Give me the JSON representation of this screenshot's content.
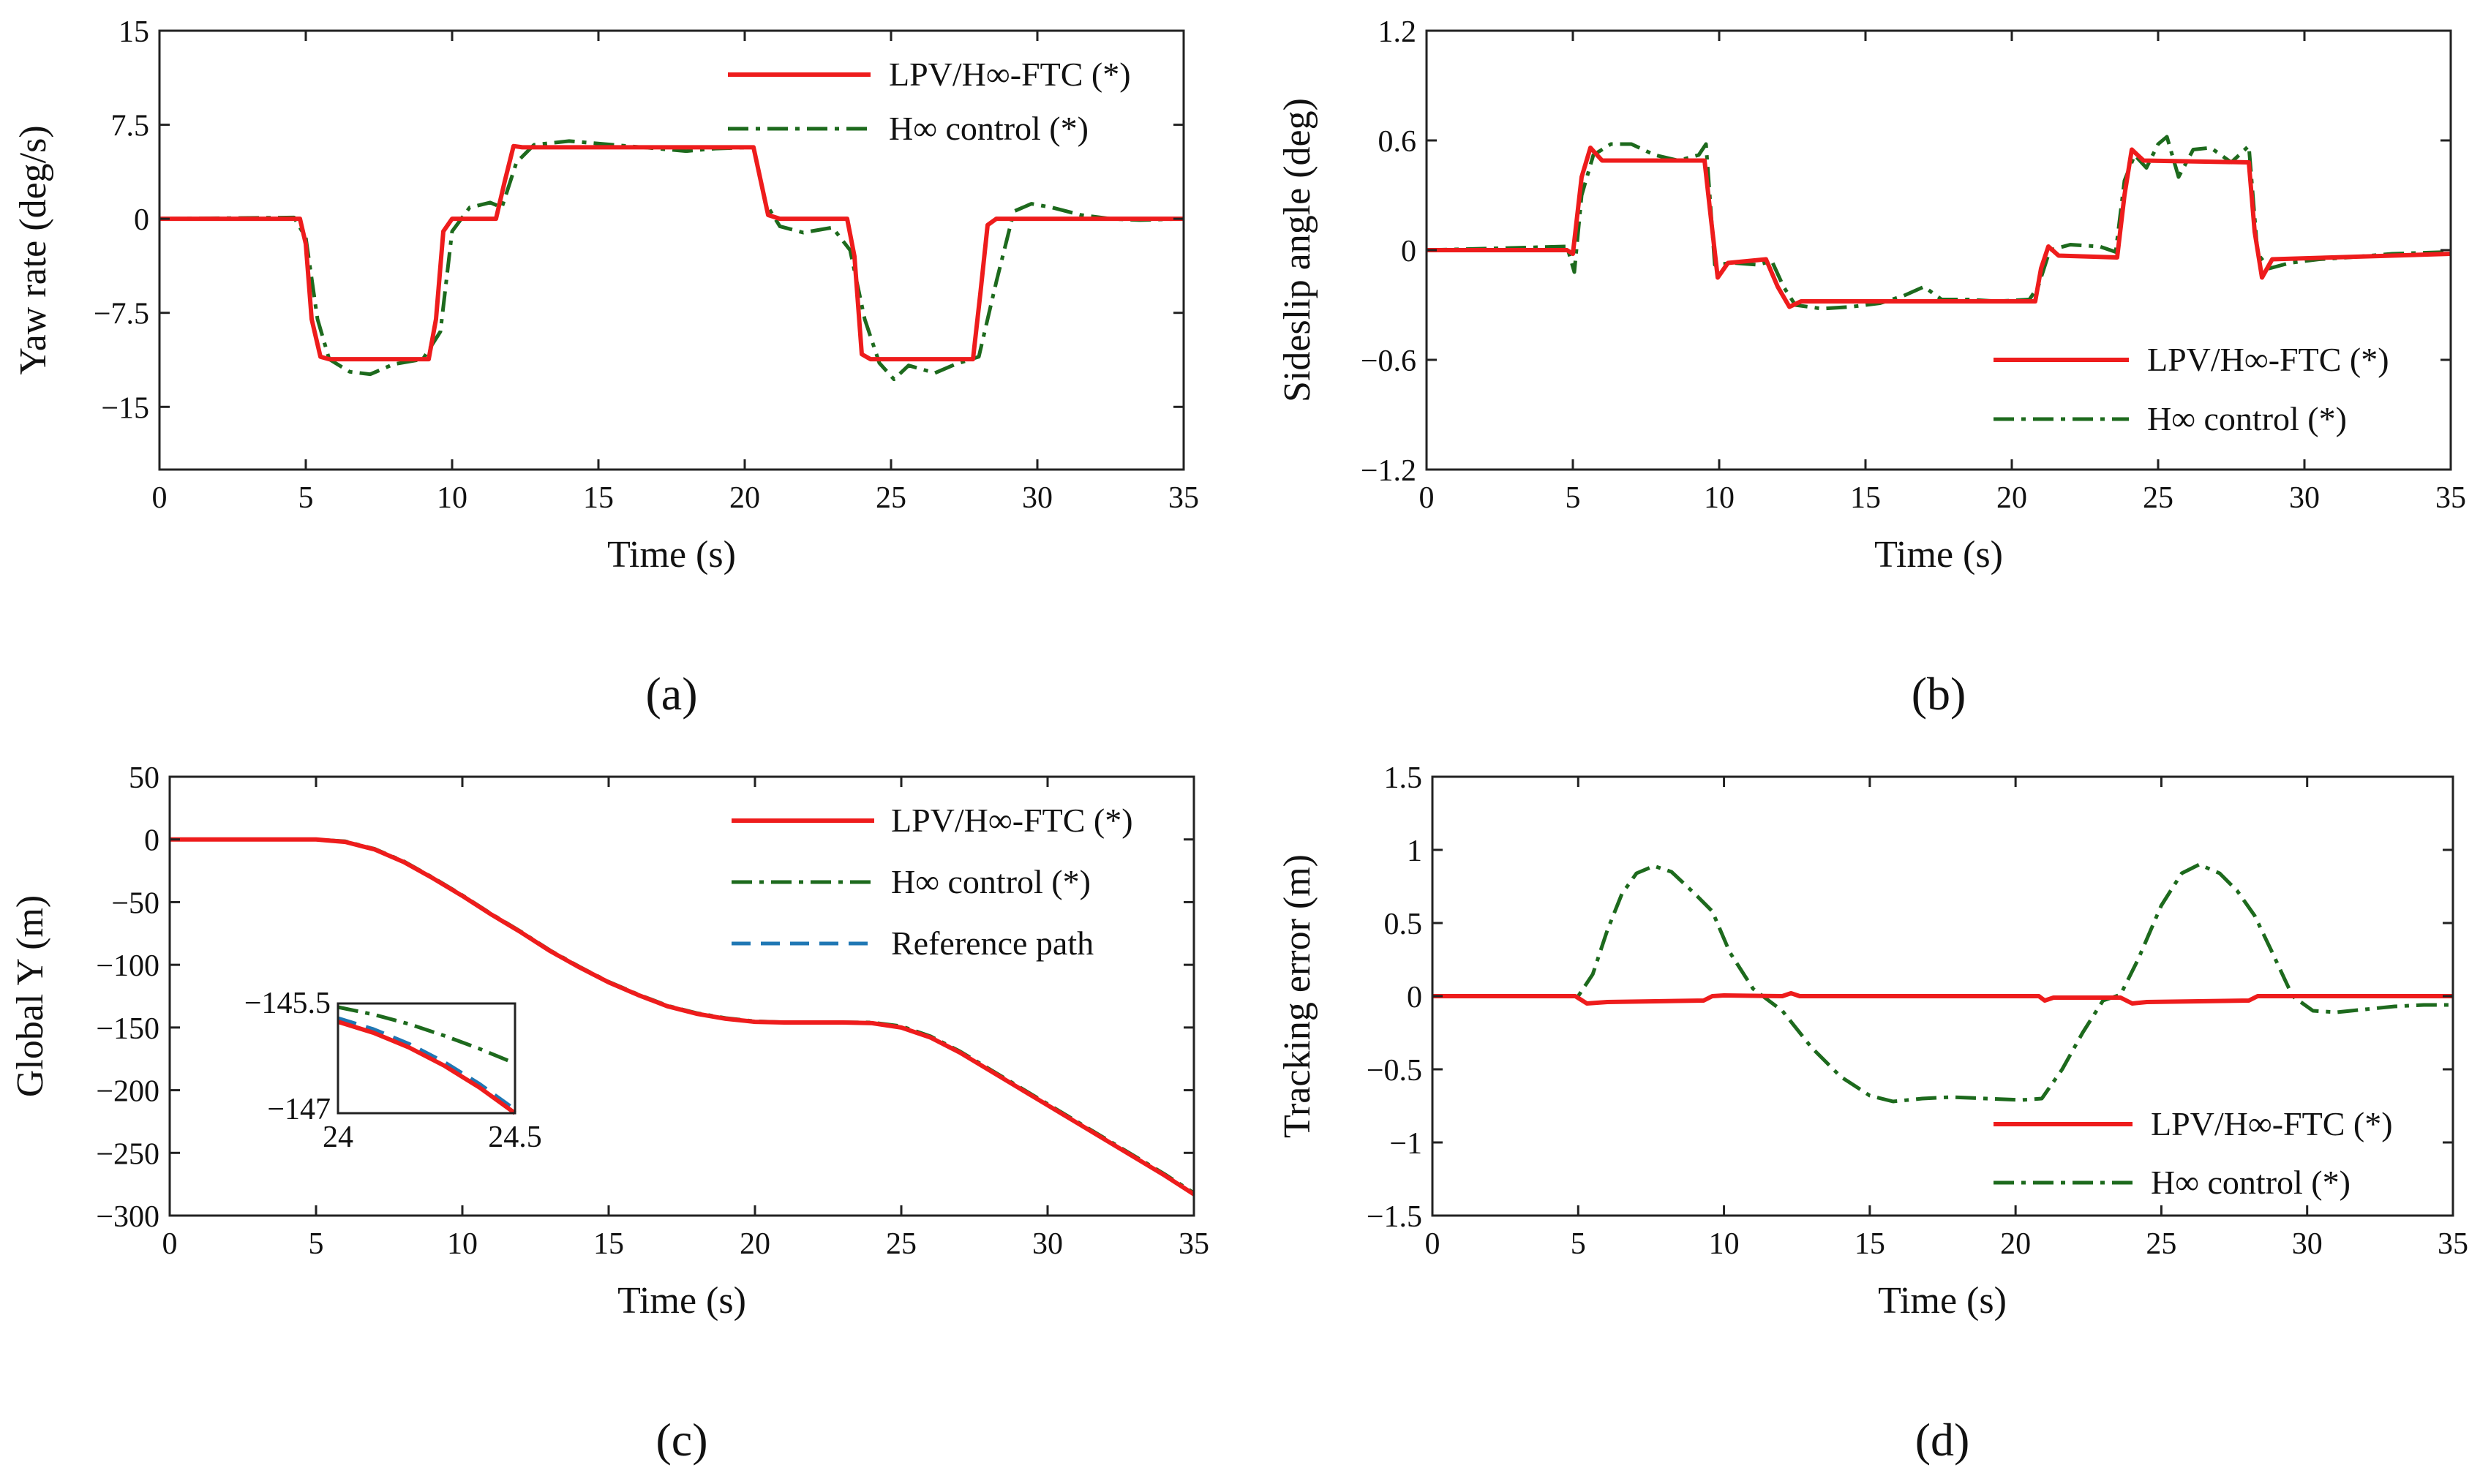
{
  "colors": {
    "ftc": "#ee1c1c",
    "hinf": "#1d6a1d",
    "ref": "#1f77b4"
  },
  "legend_labels": {
    "ftc": "LPV/H∞-FTC (*)",
    "hinf": "H∞ control (*)",
    "ref": "Reference path"
  },
  "chart_data": [
    {
      "id": "a",
      "panel_label": "(a)",
      "type": "line",
      "xlabel": "Time (s)",
      "ylabel": "Yaw rate (deg/s)",
      "xlim": [
        0,
        35
      ],
      "ylim": [
        -20,
        15
      ],
      "xticks": [
        0,
        5,
        10,
        15,
        20,
        25,
        30,
        35
      ],
      "xtick_labels": [
        "0",
        "5",
        "10",
        "15",
        "20",
        "25",
        "30",
        "35"
      ],
      "yticks": [
        15,
        7.5,
        0,
        -7.5,
        -15
      ],
      "ytick_labels": [
        "15",
        "7.5",
        "0",
        "−7.5",
        "−15"
      ],
      "legend_position": "top-right",
      "series": [
        {
          "name": "LPV/H∞-FTC (*)",
          "key": "ftc",
          "style": "solid",
          "x": [
            0,
            4.8,
            5.0,
            5.2,
            5.5,
            5.8,
            9.2,
            9.45,
            9.7,
            10.0,
            11.5,
            11.8,
            12.1,
            12.4,
            20.3,
            20.55,
            20.8,
            21.2,
            23.5,
            23.75,
            24.0,
            24.3,
            27.8,
            28.05,
            28.3,
            28.6,
            35
          ],
          "y": [
            0,
            0,
            -2,
            -8,
            -11,
            -11.2,
            -11.2,
            -8,
            -1,
            0,
            0,
            3,
            5.8,
            5.7,
            5.7,
            3,
            0.3,
            0,
            0,
            -3,
            -10.8,
            -11.2,
            -11.2,
            -6,
            -0.5,
            0,
            0
          ]
        },
        {
          "name": "H∞ control (*)",
          "key": "hinf",
          "style": "dashdot",
          "x": [
            0,
            4.6,
            5.0,
            5.4,
            5.8,
            6.5,
            7.2,
            8.0,
            9.0,
            9.6,
            10.0,
            10.6,
            11.3,
            11.7,
            12.2,
            12.8,
            14.0,
            15.5,
            17.0,
            18.0,
            19.0,
            20.3,
            20.7,
            21.2,
            22.0,
            23.0,
            23.6,
            24.1,
            24.6,
            25.1,
            25.6,
            26.5,
            27.2,
            28.0,
            28.6,
            29.2,
            29.8,
            30.5,
            31.5,
            32.5,
            33.5,
            35
          ],
          "y": [
            0,
            0.1,
            -1.5,
            -8,
            -11.2,
            -12.2,
            -12.4,
            -11.6,
            -11.2,
            -9,
            -1,
            0.9,
            1.3,
            0.9,
            4.5,
            5.9,
            6.2,
            5.9,
            5.6,
            5.4,
            5.6,
            5.7,
            1.3,
            -0.6,
            -1.1,
            -0.7,
            -2.5,
            -8,
            -11.5,
            -12.8,
            -11.7,
            -12.3,
            -11.6,
            -11,
            -5,
            0.6,
            1.2,
            0.9,
            0.3,
            0,
            -0.1,
            0
          ]
        }
      ]
    },
    {
      "id": "b",
      "panel_label": "(b)",
      "type": "line",
      "xlabel": "Time (s)",
      "ylabel": "Sideslip angle (deg)",
      "xlim": [
        0,
        35
      ],
      "ylim": [
        -1.2,
        1.2
      ],
      "xticks": [
        0,
        5,
        10,
        15,
        20,
        25,
        30,
        35
      ],
      "xtick_labels": [
        "0",
        "5",
        "10",
        "15",
        "20",
        "25",
        "30",
        "35"
      ],
      "yticks": [
        1.2,
        0.6,
        0,
        -0.6,
        -1.2
      ],
      "ytick_labels": [
        "1.2",
        "0.6",
        "0",
        "−0.6",
        "−1.2"
      ],
      "legend_position": "bottom-right",
      "series": [
        {
          "name": "LPV/H∞-FTC (*)",
          "key": "ftc",
          "style": "solid",
          "x": [
            0,
            4.8,
            5.0,
            5.3,
            5.6,
            6.0,
            9.5,
            9.7,
            9.95,
            10.3,
            11.6,
            12.0,
            12.4,
            12.8,
            20.8,
            21.0,
            21.25,
            21.6,
            23.6,
            23.85,
            24.1,
            24.5,
            28.1,
            28.3,
            28.55,
            28.9,
            35
          ],
          "y": [
            0,
            0,
            -0.02,
            0.4,
            0.56,
            0.49,
            0.49,
            0.2,
            -0.15,
            -0.07,
            -0.05,
            -0.2,
            -0.31,
            -0.28,
            -0.28,
            -0.1,
            0.02,
            -0.03,
            -0.04,
            0.3,
            0.55,
            0.49,
            0.48,
            0.1,
            -0.15,
            -0.05,
            -0.02
          ]
        },
        {
          "name": "H∞ control (*)",
          "key": "hinf",
          "style": "dashdot",
          "x": [
            0,
            4.8,
            5.05,
            5.3,
            5.7,
            6.3,
            7.0,
            7.8,
            8.6,
            9.3,
            9.55,
            9.85,
            10.5,
            11.3,
            11.8,
            12.2,
            12.6,
            13.5,
            14.5,
            15.5,
            16.3,
            17.0,
            17.6,
            18.5,
            19.5,
            20.6,
            20.9,
            21.3,
            22.0,
            23.0,
            23.55,
            23.85,
            24.2,
            24.6,
            25.0,
            25.3,
            25.7,
            26.2,
            26.8,
            27.5,
            28.1,
            28.4,
            28.8,
            29.5,
            30.5,
            31.5,
            33,
            35
          ],
          "y": [
            0,
            0.02,
            -0.12,
            0.3,
            0.52,
            0.58,
            0.58,
            0.52,
            0.49,
            0.52,
            0.58,
            -0.08,
            -0.07,
            -0.08,
            -0.06,
            -0.2,
            -0.3,
            -0.32,
            -0.31,
            -0.29,
            -0.25,
            -0.2,
            -0.27,
            -0.27,
            -0.28,
            -0.27,
            -0.2,
            0.0,
            0.03,
            0.02,
            -0.01,
            0.38,
            0.52,
            0.45,
            0.58,
            0.62,
            0.4,
            0.55,
            0.56,
            0.48,
            0.57,
            -0.02,
            -0.1,
            -0.07,
            -0.05,
            -0.04,
            -0.02,
            -0.01
          ]
        }
      ]
    },
    {
      "id": "c",
      "panel_label": "(c)",
      "type": "line",
      "xlabel": "Time (s)",
      "ylabel": "Global Y (m)",
      "xlim": [
        0,
        35
      ],
      "ylim": [
        -300,
        50
      ],
      "xticks": [
        0,
        5,
        10,
        15,
        20,
        25,
        30,
        35
      ],
      "xtick_labels": [
        "0",
        "5",
        "10",
        "15",
        "20",
        "25",
        "30",
        "35"
      ],
      "yticks": [
        50,
        0,
        -50,
        -100,
        -150,
        -200,
        -250,
        -300
      ],
      "ytick_labels": [
        "50",
        "0",
        "−50",
        "−100",
        "−150",
        "−200",
        "−250",
        "−300"
      ],
      "legend_position": "top-right",
      "inset": {
        "xlim": [
          24,
          24.5
        ],
        "ylim": [
          -147,
          -145.5
        ],
        "xtick_labels": [
          "24",
          "24.5"
        ],
        "ytick_labels": [
          "−145.5",
          "−147"
        ],
        "series": [
          {
            "key": "ref",
            "style": "dashed",
            "x": [
              24,
              24.1,
              24.2,
              24.3,
              24.4,
              24.5
            ],
            "y": [
              -145.7,
              -145.85,
              -146.05,
              -146.3,
              -146.6,
              -146.95
            ]
          },
          {
            "key": "ftc",
            "style": "solid",
            "x": [
              24,
              24.1,
              24.2,
              24.3,
              24.4,
              24.5
            ],
            "y": [
              -145.75,
              -145.9,
              -146.1,
              -146.35,
              -146.65,
              -147.0
            ]
          },
          {
            "key": "hinf",
            "style": "dashdot",
            "x": [
              24,
              24.1,
              24.2,
              24.3,
              24.4,
              24.5
            ],
            "y": [
              -145.55,
              -145.65,
              -145.78,
              -145.94,
              -146.12,
              -146.32
            ]
          }
        ]
      },
      "series": [
        {
          "name": "LPV/H∞-FTC (*)",
          "key": "ftc",
          "style": "solid",
          "x": [
            0,
            5,
            6,
            7,
            8,
            9,
            10,
            11,
            12,
            13,
            14,
            15,
            16,
            17,
            18,
            19,
            20,
            21,
            22,
            23,
            24,
            25,
            26,
            27,
            28,
            29,
            30,
            31,
            32,
            33,
            34,
            35
          ],
          "y": [
            0,
            0,
            -2,
            -8,
            -18,
            -31,
            -45,
            -60,
            -74,
            -89,
            -102,
            -114,
            -124,
            -133,
            -139,
            -143,
            -145.5,
            -146,
            -146,
            -146,
            -146.5,
            -150,
            -158,
            -170,
            -184,
            -198,
            -212,
            -226,
            -240,
            -254,
            -268,
            -283
          ]
        },
        {
          "name": "H∞ control (*)",
          "key": "hinf",
          "style": "dashdot",
          "x": [
            0,
            5,
            6,
            7,
            8,
            9,
            10,
            11,
            12,
            13,
            14,
            15,
            16,
            17,
            18,
            19,
            20,
            21,
            22,
            23,
            24,
            25,
            26,
            27,
            28,
            29,
            30,
            31,
            32,
            33,
            34,
            35
          ],
          "y": [
            0,
            0,
            -1.5,
            -7.5,
            -17.5,
            -30.5,
            -44.5,
            -59.5,
            -73.5,
            -88.5,
            -101.5,
            -113.5,
            -123.5,
            -132.5,
            -138.5,
            -142.5,
            -145,
            -145.8,
            -145.9,
            -145.8,
            -146,
            -149,
            -157,
            -169,
            -183,
            -197,
            -211,
            -225,
            -239,
            -253,
            -267,
            -282
          ]
        },
        {
          "name": "Reference path",
          "key": "ref",
          "style": "dashed",
          "x": [
            0,
            5,
            6,
            7,
            8,
            9,
            10,
            11,
            12,
            13,
            14,
            15,
            16,
            17,
            18,
            19,
            20,
            21,
            22,
            23,
            24,
            25,
            26,
            27,
            28,
            29,
            30,
            31,
            32,
            33,
            34,
            35
          ],
          "y": [
            0,
            0,
            -2,
            -8,
            -18,
            -31,
            -45,
            -60,
            -74,
            -89,
            -102,
            -114,
            -124,
            -133,
            -139,
            -143,
            -145.5,
            -146,
            -146,
            -146,
            -146.5,
            -150,
            -158,
            -170,
            -184,
            -198,
            -212,
            -226,
            -240,
            -254,
            -268,
            -283
          ]
        }
      ]
    },
    {
      "id": "d",
      "panel_label": "(d)",
      "type": "line",
      "xlabel": "Time (s)",
      "ylabel": "Tracking error (m)",
      "xlim": [
        0,
        35
      ],
      "ylim": [
        -1.5,
        1.5
      ],
      "xticks": [
        0,
        5,
        10,
        15,
        20,
        25,
        30,
        35
      ],
      "xtick_labels": [
        "0",
        "5",
        "10",
        "15",
        "20",
        "25",
        "30",
        "35"
      ],
      "yticks": [
        1.5,
        1,
        0.5,
        0,
        -0.5,
        -1,
        -1.5
      ],
      "ytick_labels": [
        "1.5",
        "1",
        "0.5",
        "0",
        "−0.5",
        "−1",
        "−1.5"
      ],
      "legend_position": "bottom-right",
      "series": [
        {
          "name": "LPV/H∞-FTC (*)",
          "key": "ftc",
          "style": "solid",
          "x": [
            0,
            4.9,
            5.3,
            6.0,
            9.3,
            9.6,
            10.0,
            12.0,
            12.3,
            12.6,
            20.8,
            21.0,
            21.3,
            23.6,
            24.0,
            24.5,
            28.0,
            28.3,
            28.7,
            35
          ],
          "y": [
            0,
            0,
            -0.05,
            -0.04,
            -0.03,
            0.0,
            0.005,
            0.0,
            0.02,
            0.0,
            0.0,
            -0.03,
            -0.01,
            -0.01,
            -0.05,
            -0.04,
            -0.03,
            0.0,
            0.0,
            0
          ]
        },
        {
          "name": "H∞ control (*)",
          "key": "hinf",
          "style": "dashdot",
          "x": [
            0,
            5.0,
            5.5,
            6.0,
            6.5,
            7.0,
            7.6,
            8.2,
            9.0,
            9.6,
            10.2,
            11.0,
            12.0,
            13.0,
            14.0,
            15.0,
            15.8,
            16.8,
            17.8,
            19.0,
            20.2,
            20.9,
            21.6,
            22.3,
            23.0,
            23.6,
            24.2,
            25.0,
            25.7,
            26.3,
            27.0,
            27.6,
            28.2,
            28.8,
            29.5,
            30.2,
            31.0,
            32.0,
            33.0,
            34.0,
            35
          ],
          "y": [
            0,
            0,
            0.15,
            0.45,
            0.7,
            0.84,
            0.89,
            0.85,
            0.7,
            0.58,
            0.3,
            0.05,
            -0.1,
            -0.35,
            -0.55,
            -0.68,
            -0.72,
            -0.7,
            -0.69,
            -0.7,
            -0.71,
            -0.7,
            -0.5,
            -0.25,
            -0.03,
            0.01,
            0.25,
            0.62,
            0.84,
            0.9,
            0.84,
            0.72,
            0.55,
            0.3,
            0.0,
            -0.1,
            -0.11,
            -0.09,
            -0.07,
            -0.06,
            -0.06
          ]
        }
      ]
    }
  ]
}
